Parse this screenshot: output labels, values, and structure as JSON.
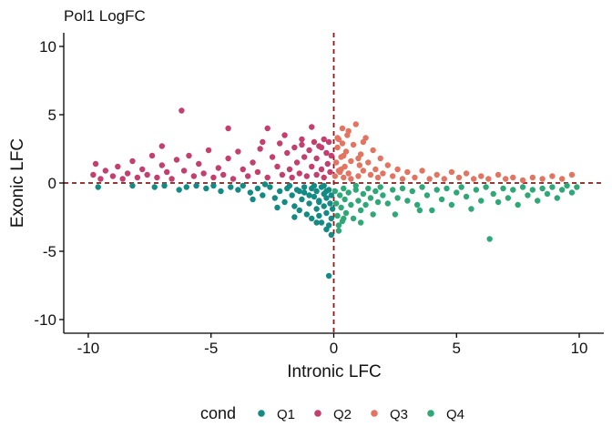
{
  "chart_data": {
    "type": "scatter",
    "title": "Pol1 LogFC",
    "xlabel": "Intronic LFC",
    "ylabel": "Exonic LFC",
    "xlim": [
      -11,
      11
    ],
    "ylim": [
      -11,
      11
    ],
    "xticks": [
      -10,
      -5,
      0,
      5,
      10
    ],
    "yticks": [
      -10,
      -5,
      0,
      5,
      10
    ],
    "xtick_labels": [
      "-10",
      "-5",
      "0",
      "5",
      "10"
    ],
    "ytick_labels": [
      "-10",
      "-5",
      "0",
      "5",
      "10"
    ],
    "reference_lines": {
      "x": 0,
      "y": 0,
      "color": "#8b1a1a",
      "style": "dashed"
    },
    "grid": false,
    "legend": {
      "title": "cond",
      "position": "bottom",
      "entries": [
        {
          "name": "Q1",
          "color": "#138a84"
        },
        {
          "name": "Q2",
          "color": "#c43e6e"
        },
        {
          "name": "Q3",
          "color": "#e37461"
        },
        {
          "name": "Q4",
          "color": "#2ea877"
        }
      ]
    },
    "series": [
      {
        "name": "Q1",
        "color": "#138a84",
        "points": [
          [
            -9.6,
            -0.3
          ],
          [
            -8.2,
            -0.2
          ],
          [
            -7.3,
            -0.3
          ],
          [
            -6.9,
            -0.2
          ],
          [
            -6.3,
            -0.5
          ],
          [
            -6.0,
            -0.3
          ],
          [
            -5.6,
            -0.2
          ],
          [
            -5.2,
            -0.4
          ],
          [
            -4.9,
            -0.2
          ],
          [
            -4.6,
            -0.6
          ],
          [
            -4.2,
            -0.3
          ],
          [
            -3.9,
            -0.5
          ],
          [
            -3.7,
            -0.2
          ],
          [
            -3.4,
            -0.7
          ],
          [
            -3.1,
            -0.4
          ],
          [
            -2.9,
            -0.9
          ],
          [
            -2.6,
            -0.3
          ],
          [
            -2.4,
            -1.1
          ],
          [
            -2.2,
            -0.6
          ],
          [
            -2.0,
            -1.4
          ],
          [
            -1.9,
            -0.4
          ],
          [
            -1.7,
            -0.9
          ],
          [
            -1.6,
            -1.7
          ],
          [
            -1.5,
            -0.5
          ],
          [
            -1.4,
            -2.0
          ],
          [
            -1.3,
            -1.2
          ],
          [
            -1.2,
            -0.7
          ],
          [
            -1.1,
            -2.3
          ],
          [
            -1.0,
            -1.5
          ],
          [
            -0.9,
            -0.4
          ],
          [
            -0.9,
            -2.6
          ],
          [
            -0.8,
            -1.0
          ],
          [
            -0.7,
            -1.9
          ],
          [
            -0.7,
            -0.6
          ],
          [
            -0.6,
            -2.4
          ],
          [
            -0.6,
            -1.3
          ],
          [
            -0.5,
            -0.3
          ],
          [
            -0.5,
            -2.9
          ],
          [
            -0.4,
            -1.7
          ],
          [
            -0.4,
            -0.8
          ],
          [
            -0.3,
            -2.2
          ],
          [
            -0.3,
            -1.1
          ],
          [
            -0.2,
            -3.1
          ],
          [
            -0.2,
            -0.5
          ],
          [
            -0.15,
            -1.5
          ],
          [
            -0.1,
            -2.6
          ],
          [
            -0.1,
            -0.9
          ],
          [
            -0.05,
            -1.9
          ],
          [
            -0.2,
            -6.8
          ],
          [
            -0.1,
            -3.8
          ],
          [
            -0.3,
            -3.4
          ],
          [
            -1.6,
            -2.5
          ],
          [
            -2.3,
            -1.8
          ],
          [
            -3.3,
            -1.2
          ],
          [
            -0.8,
            -0.2
          ],
          [
            -1.8,
            -0.2
          ],
          [
            -2.8,
            -0.1
          ],
          [
            -0.4,
            -0.2
          ],
          [
            -1.2,
            -0.3
          ],
          [
            -0.6,
            -1.4
          ],
          [
            -1.0,
            -0.9
          ],
          [
            -1.4,
            -0.6
          ],
          [
            -0.3,
            -0.6
          ],
          [
            -0.7,
            -2.9
          ]
        ]
      },
      {
        "name": "Q2",
        "color": "#c43e6e",
        "points": [
          [
            -9.8,
            0.6
          ],
          [
            -9.7,
            1.4
          ],
          [
            -9.5,
            0.3
          ],
          [
            -9.3,
            0.9
          ],
          [
            -9.0,
            0.5
          ],
          [
            -8.8,
            1.2
          ],
          [
            -8.6,
            0.3
          ],
          [
            -8.4,
            0.7
          ],
          [
            -8.2,
            1.6
          ],
          [
            -8.0,
            0.4
          ],
          [
            -7.8,
            1.0
          ],
          [
            -7.6,
            0.6
          ],
          [
            -7.4,
            2.0
          ],
          [
            -7.2,
            0.4
          ],
          [
            -7.0,
            1.3
          ],
          [
            -6.8,
            0.8
          ],
          [
            -6.6,
            0.3
          ],
          [
            -6.4,
            1.7
          ],
          [
            -6.2,
            5.3
          ],
          [
            -6.1,
            0.9
          ],
          [
            -5.9,
            2.0
          ],
          [
            -5.7,
            0.5
          ],
          [
            -5.5,
            1.4
          ],
          [
            -5.3,
            0.7
          ],
          [
            -5.1,
            2.4
          ],
          [
            -4.9,
            0.4
          ],
          [
            -4.7,
            1.1
          ],
          [
            -4.5,
            0.6
          ],
          [
            -4.3,
            1.8
          ],
          [
            -4.1,
            0.3
          ],
          [
            -3.9,
            2.3
          ],
          [
            -3.7,
            1.0
          ],
          [
            -3.5,
            0.5
          ],
          [
            -3.3,
            1.5
          ],
          [
            -3.1,
            0.8
          ],
          [
            -2.9,
            3.0
          ],
          [
            -2.7,
            0.4
          ],
          [
            -2.5,
            1.9
          ],
          [
            -2.3,
            1.2
          ],
          [
            -2.1,
            0.6
          ],
          [
            -2.0,
            3.5
          ],
          [
            -1.9,
            2.2
          ],
          [
            -1.8,
            1.0
          ],
          [
            -1.7,
            0.4
          ],
          [
            -1.6,
            2.6
          ],
          [
            -1.5,
            1.5
          ],
          [
            -1.4,
            0.7
          ],
          [
            -1.3,
            3.2
          ],
          [
            -1.2,
            1.9
          ],
          [
            -1.1,
            0.5
          ],
          [
            -1.0,
            2.4
          ],
          [
            -0.9,
            1.2
          ],
          [
            -0.8,
            3.0
          ],
          [
            -0.7,
            0.6
          ],
          [
            -0.7,
            1.8
          ],
          [
            -0.6,
            2.7
          ],
          [
            -0.5,
            1.0
          ],
          [
            -0.4,
            3.2
          ],
          [
            -0.4,
            0.4
          ],
          [
            -0.3,
            2.2
          ],
          [
            -0.25,
            1.4
          ],
          [
            -0.2,
            3.0
          ],
          [
            -0.15,
            0.8
          ],
          [
            -0.1,
            2.0
          ],
          [
            -4.3,
            4.0
          ],
          [
            -2.7,
            4.0
          ],
          [
            -0.9,
            4.1
          ],
          [
            -7.0,
            2.7
          ],
          [
            -3.0,
            2.5
          ],
          [
            -1.3,
            2.8
          ],
          [
            -0.5,
            2.6
          ],
          [
            -2.2,
            2.9
          ]
        ]
      },
      {
        "name": "Q3",
        "color": "#e37461",
        "points": [
          [
            0.05,
            0.5
          ],
          [
            0.1,
            1.5
          ],
          [
            0.15,
            2.6
          ],
          [
            0.2,
            3.2
          ],
          [
            0.25,
            0.8
          ],
          [
            0.3,
            1.9
          ],
          [
            0.35,
            2.9
          ],
          [
            0.4,
            0.4
          ],
          [
            0.45,
            1.2
          ],
          [
            0.5,
            2.3
          ],
          [
            0.55,
            3.5
          ],
          [
            0.6,
            0.7
          ],
          [
            0.7,
            1.6
          ],
          [
            0.8,
            2.8
          ],
          [
            0.9,
            4.3
          ],
          [
            1.0,
            0.5
          ],
          [
            1.05,
            1.3
          ],
          [
            1.1,
            2.1
          ],
          [
            1.2,
            0.9
          ],
          [
            1.3,
            3.3
          ],
          [
            1.4,
            1.5
          ],
          [
            1.5,
            0.6
          ],
          [
            1.6,
            2.4
          ],
          [
            1.7,
            1.0
          ],
          [
            1.8,
            0.4
          ],
          [
            1.9,
            1.8
          ],
          [
            2.0,
            0.7
          ],
          [
            2.2,
            1.3
          ],
          [
            2.4,
            0.5
          ],
          [
            2.6,
            1.0
          ],
          [
            2.8,
            0.3
          ],
          [
            3.0,
            0.8
          ],
          [
            3.3,
            0.4
          ],
          [
            3.6,
            0.9
          ],
          [
            3.9,
            0.3
          ],
          [
            4.2,
            0.6
          ],
          [
            4.5,
            0.3
          ],
          [
            4.8,
            0.8
          ],
          [
            5.1,
            0.4
          ],
          [
            5.4,
            0.7
          ],
          [
            5.7,
            0.3
          ],
          [
            6.0,
            0.5
          ],
          [
            6.3,
            0.3
          ],
          [
            6.7,
            0.6
          ],
          [
            7.0,
            0.3
          ],
          [
            7.3,
            0.4
          ],
          [
            7.7,
            0.2
          ],
          [
            8.1,
            0.4
          ],
          [
            8.5,
            0.3
          ],
          [
            8.9,
            0.5
          ],
          [
            9.3,
            0.3
          ],
          [
            9.7,
            0.6
          ],
          [
            0.35,
            4.0
          ],
          [
            0.15,
            3.3
          ],
          [
            1.2,
            3.0
          ],
          [
            0.6,
            3.8
          ],
          [
            0.3,
            1.0
          ],
          [
            0.7,
            0.3
          ],
          [
            1.0,
            1.8
          ],
          [
            0.4,
            2.0
          ],
          [
            0.2,
            0.9
          ]
        ]
      },
      {
        "name": "Q4",
        "color": "#2ea877",
        "points": [
          [
            0.05,
            -0.6
          ],
          [
            0.1,
            -1.5
          ],
          [
            0.15,
            -2.4
          ],
          [
            0.2,
            -3.1
          ],
          [
            0.25,
            -0.9
          ],
          [
            0.3,
            -1.8
          ],
          [
            0.35,
            -2.8
          ],
          [
            0.4,
            -0.4
          ],
          [
            0.45,
            -1.2
          ],
          [
            0.5,
            -2.2
          ],
          [
            0.6,
            -0.7
          ],
          [
            0.7,
            -1.6
          ],
          [
            0.8,
            -2.6
          ],
          [
            0.9,
            -0.5
          ],
          [
            1.0,
            -1.3
          ],
          [
            1.1,
            -2.0
          ],
          [
            1.2,
            -0.8
          ],
          [
            1.3,
            -1.6
          ],
          [
            1.4,
            -0.4
          ],
          [
            1.5,
            -1.1
          ],
          [
            1.6,
            -2.3
          ],
          [
            1.7,
            -0.6
          ],
          [
            1.8,
            -1.4
          ],
          [
            1.9,
            -0.3
          ],
          [
            2.0,
            -0.9
          ],
          [
            2.2,
            -1.5
          ],
          [
            2.4,
            -0.5
          ],
          [
            2.6,
            -1.1
          ],
          [
            2.8,
            -0.4
          ],
          [
            3.0,
            -1.3
          ],
          [
            3.2,
            -0.6
          ],
          [
            3.4,
            -1.6
          ],
          [
            3.6,
            -0.3
          ],
          [
            3.8,
            -0.9
          ],
          [
            4.0,
            -2.0
          ],
          [
            4.2,
            -0.5
          ],
          [
            4.4,
            -1.2
          ],
          [
            4.6,
            -0.4
          ],
          [
            4.8,
            -1.6
          ],
          [
            5.0,
            -0.7
          ],
          [
            5.2,
            -0.3
          ],
          [
            5.4,
            -1.0
          ],
          [
            5.6,
            -1.9
          ],
          [
            5.8,
            -0.5
          ],
          [
            6.0,
            -1.3
          ],
          [
            6.2,
            -0.3
          ],
          [
            6.35,
            -4.1
          ],
          [
            6.5,
            -0.8
          ],
          [
            6.7,
            -1.4
          ],
          [
            6.9,
            -0.4
          ],
          [
            7.1,
            -1.1
          ],
          [
            7.3,
            -0.5
          ],
          [
            7.5,
            -1.6
          ],
          [
            7.7,
            -0.3
          ],
          [
            7.9,
            -0.9
          ],
          [
            8.1,
            -0.5
          ],
          [
            8.3,
            -1.3
          ],
          [
            8.5,
            -0.4
          ],
          [
            8.7,
            -0.8
          ],
          [
            8.9,
            -0.3
          ],
          [
            9.1,
            -1.1
          ],
          [
            9.3,
            -0.5
          ],
          [
            9.5,
            -0.2
          ],
          [
            9.7,
            -0.7
          ],
          [
            9.9,
            -0.3
          ],
          [
            0.2,
            -3.5
          ],
          [
            0.4,
            -2.6
          ],
          [
            1.1,
            -2.9
          ],
          [
            0.9,
            -0.2
          ],
          [
            2.5,
            -2.3
          ],
          [
            3.5,
            -2.0
          ]
        ]
      }
    ]
  }
}
